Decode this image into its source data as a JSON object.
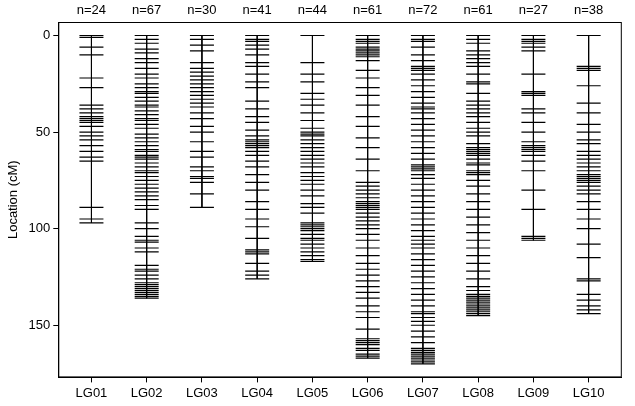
{
  "chart_data": {
    "type": "linkage_map",
    "ylabel": "Location (cM)",
    "categories": [
      "LG01",
      "LG02",
      "LG03",
      "LG04",
      "LG05",
      "LG06",
      "LG07",
      "LG08",
      "LG09",
      "LG10"
    ],
    "group_labels": [
      "n=24",
      "n=67",
      "n=30",
      "n=41",
      "n=44",
      "n=61",
      "n=72",
      "n=61",
      "n=27",
      "n=38"
    ],
    "positions": [
      [
        0,
        1,
        6,
        10,
        22,
        27,
        36,
        38,
        40,
        42,
        43,
        44,
        45,
        47,
        50,
        52,
        54,
        57,
        60,
        63,
        65,
        89,
        95,
        97
      ],
      [
        0,
        2,
        4,
        7,
        9,
        12,
        14,
        17,
        20,
        22,
        25,
        27,
        29,
        30,
        32,
        34,
        36,
        37,
        39,
        41,
        43,
        44,
        46,
        48,
        51,
        53,
        55,
        57,
        59,
        60,
        62,
        63,
        64,
        66,
        68,
        70,
        71,
        73,
        75,
        77,
        79,
        81,
        83,
        85,
        88,
        90,
        97,
        100,
        104,
        106,
        107,
        110,
        112,
        119,
        121,
        122,
        124,
        126,
        128,
        129,
        130,
        131,
        132,
        133,
        134,
        135,
        136
      ],
      [
        0,
        2,
        5,
        8,
        14,
        17,
        19,
        21,
        23,
        25,
        27,
        29,
        31,
        33,
        35,
        37,
        40,
        43,
        47,
        50,
        55,
        60,
        63,
        68,
        70,
        73,
        74,
        76,
        82,
        89
      ],
      [
        0,
        2,
        3,
        5,
        7,
        10,
        14,
        16,
        20,
        24,
        27,
        34,
        38,
        42,
        45,
        49,
        52,
        54,
        55,
        56,
        57,
        58,
        60,
        62,
        65,
        68,
        72,
        76,
        80,
        86,
        90,
        95,
        99,
        105,
        111,
        112,
        113,
        118,
        122,
        124,
        126
      ],
      [
        0,
        14,
        20,
        24,
        30,
        33,
        36,
        40,
        44,
        48,
        50,
        51,
        52,
        54,
        56,
        58,
        60,
        62,
        64,
        66,
        68,
        71,
        73,
        75,
        77,
        80,
        83,
        87,
        89,
        92,
        97,
        98,
        99,
        100,
        101,
        103,
        105,
        106,
        108,
        110,
        112,
        114,
        116,
        117
      ],
      [
        0,
        2,
        3,
        4,
        6,
        7,
        8,
        9,
        10,
        11,
        13,
        18,
        22,
        27,
        31,
        36,
        42,
        47,
        53,
        58,
        64,
        70,
        76,
        78,
        80,
        82,
        84,
        86,
        87,
        88,
        89,
        90,
        92,
        94,
        96,
        98,
        100,
        103,
        106,
        110,
        114,
        118,
        121,
        124,
        127,
        130,
        133,
        136,
        140,
        143,
        146,
        152,
        157,
        158,
        159,
        160,
        162,
        163,
        165,
        166,
        167
      ],
      [
        0,
        2,
        3,
        6,
        10,
        13,
        16,
        17,
        18,
        20,
        23,
        26,
        29,
        32,
        35,
        37,
        38,
        40,
        43,
        46,
        49,
        52,
        55,
        58,
        61,
        64,
        67,
        68,
        69,
        70,
        72,
        74,
        77,
        80,
        83,
        86,
        89,
        92,
        95,
        98,
        101,
        104,
        106,
        108,
        110,
        113,
        116,
        119,
        122,
        125,
        128,
        131,
        134,
        137,
        140,
        143,
        144,
        146,
        148,
        150,
        153,
        156,
        159,
        162,
        163,
        164,
        165,
        166,
        167,
        168,
        169,
        170
      ],
      [
        0,
        2,
        4,
        8,
        10,
        12,
        14,
        16,
        20,
        24,
        25,
        30,
        34,
        36,
        38,
        40,
        42,
        45,
        48,
        50,
        52,
        56,
        58,
        59,
        60,
        61,
        62,
        64,
        66,
        67,
        70,
        71,
        72,
        75,
        78,
        82,
        86,
        90,
        94,
        98,
        102,
        106,
        110,
        114,
        118,
        122,
        126,
        130,
        132,
        134,
        135,
        136,
        137,
        138,
        139,
        140,
        141,
        142,
        143,
        144,
        145
      ],
      [
        0,
        2,
        3,
        4,
        6,
        8,
        20,
        29,
        30,
        31,
        38,
        40,
        45,
        50,
        55,
        57,
        58,
        59,
        60,
        62,
        65,
        70,
        80,
        90,
        104,
        105,
        106
      ],
      [
        0,
        16,
        17,
        18,
        26,
        35,
        40,
        46,
        50,
        54,
        56,
        60,
        62,
        64,
        66,
        68,
        70,
        72,
        73,
        74,
        75,
        76,
        78,
        80,
        82,
        86,
        90,
        95,
        100,
        108,
        115,
        126,
        127,
        134,
        137,
        140,
        142,
        144
      ]
    ],
    "ylim": [
      177,
      -7
    ],
    "yticks": [
      0,
      50,
      100,
      150
    ],
    "color": "#000000",
    "marker": "line",
    "grid": false
  }
}
